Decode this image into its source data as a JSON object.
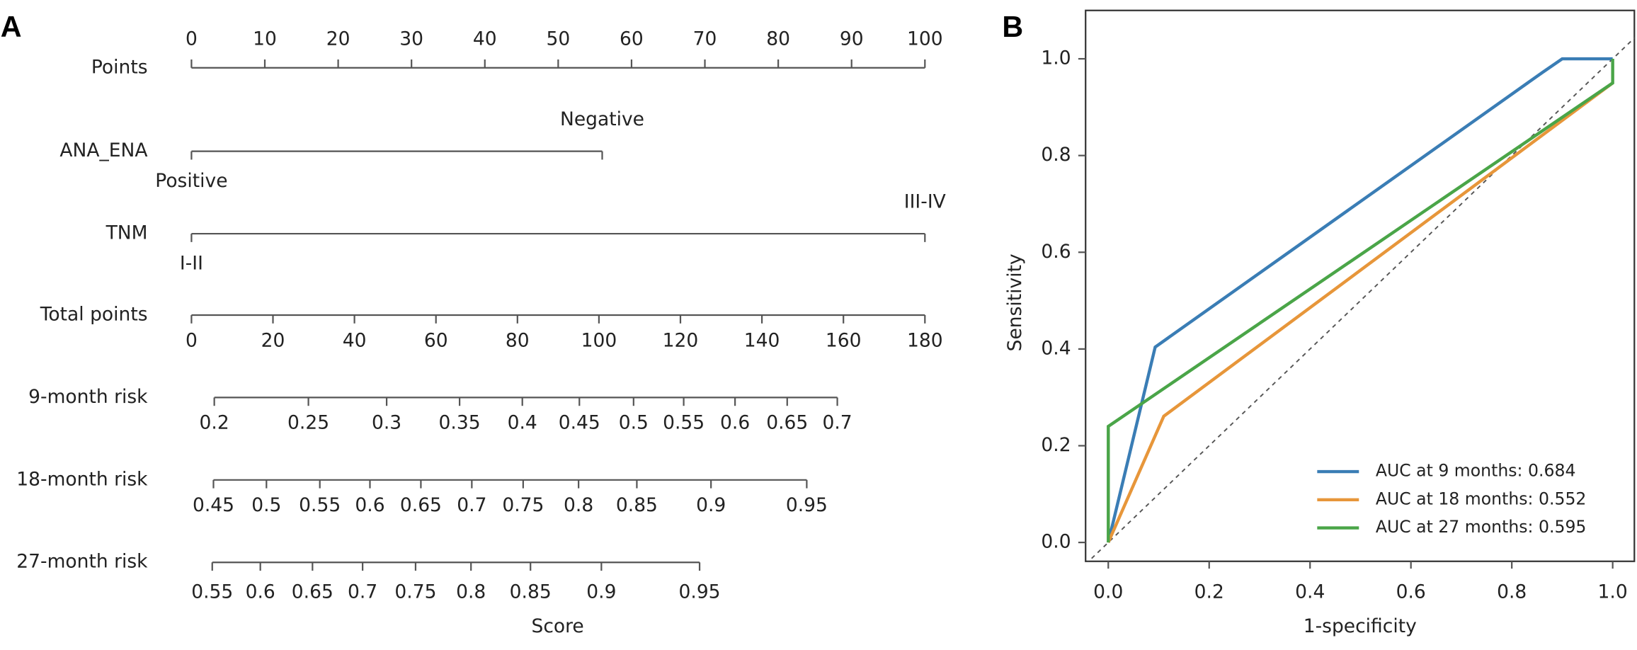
{
  "chart_data": [
    {
      "type": "nomogram",
      "panel": "A",
      "xlabel": "Score",
      "points_axis": {
        "label": "Points",
        "lim": [
          0,
          100
        ],
        "ticks": [
          0,
          10,
          20,
          30,
          40,
          50,
          60,
          70,
          80,
          90,
          100
        ]
      },
      "variables": [
        {
          "label": "ANA_ENA",
          "levels": [
            {
              "name": "Positive",
              "points": 0
            },
            {
              "name": "Negative",
              "points": 56
            }
          ]
        },
        {
          "label": "TNM",
          "levels": [
            {
              "name": "I-II",
              "points": 0
            },
            {
              "name": "III-IV",
              "points": 100
            }
          ]
        }
      ],
      "total_points_axis": {
        "label": "Total points",
        "lim": [
          0,
          180
        ],
        "ticks": [
          0,
          20,
          40,
          60,
          80,
          100,
          120,
          140,
          160,
          180
        ]
      },
      "risk_axes": [
        {
          "label": "9-month risk",
          "ticks": [
            0.2,
            0.25,
            0.3,
            0.35,
            0.4,
            0.45,
            0.5,
            0.55,
            0.6,
            0.65,
            0.7
          ],
          "positions": [
            5.6,
            28.7,
            47.9,
            65.8,
            81.2,
            95.2,
            108.5,
            120.8,
            133.4,
            146.2,
            158.5
          ]
        },
        {
          "label": "18-month risk",
          "ticks": [
            0.45,
            0.5,
            0.55,
            0.6,
            0.65,
            0.7,
            0.75,
            0.8,
            0.85,
            0.9,
            0.95
          ],
          "positions": [
            5.4,
            18.4,
            31.5,
            43.8,
            56.3,
            68.8,
            81.4,
            95.0,
            109.3,
            127.5,
            151.0
          ]
        },
        {
          "label": "27-month risk",
          "ticks": [
            0.55,
            0.6,
            0.65,
            0.7,
            0.75,
            0.8,
            0.85,
            0.9,
            0.95
          ],
          "positions": [
            5.1,
            16.9,
            29.7,
            42.0,
            55.0,
            68.6,
            83.2,
            100.6,
            124.7
          ]
        }
      ]
    },
    {
      "type": "line",
      "panel": "B",
      "xlabel": "1-specificity",
      "ylabel": "Sensitivity",
      "xlim": [
        -0.045,
        1.043
      ],
      "ylim": [
        -0.039,
        1.1
      ],
      "xticks": [
        {
          "value": 0,
          "label": "0.0"
        },
        {
          "value": 0.2,
          "label": "0.2"
        },
        {
          "value": 0.4,
          "label": "0.4"
        },
        {
          "value": 0.6,
          "label": "0.6"
        },
        {
          "value": 0.8,
          "label": "0.8"
        },
        {
          "value": 1,
          "label": "1.0"
        }
      ],
      "yticks": [
        {
          "value": 0,
          "label": "0.0"
        },
        {
          "value": 0.2,
          "label": "0.2"
        },
        {
          "value": 0.4,
          "label": "0.4"
        },
        {
          "value": 0.6,
          "label": "0.6"
        },
        {
          "value": 0.8,
          "label": "0.8"
        },
        {
          "value": 1,
          "label": "1.0"
        }
      ],
      "reference_line": true,
      "legend": "lower right",
      "series": [
        {
          "name": "AUC at 9 months: 0.684",
          "color": "#3a7db5",
          "x": [
            0,
            0.093,
            0.861,
            0.9,
            1
          ],
          "values": [
            0,
            0.404,
            0.972,
            1,
            1
          ]
        },
        {
          "name": "AUC at 18 months: 0.552",
          "color": "#e7963a",
          "x": [
            0,
            0.11,
            1
          ],
          "values": [
            0,
            0.261,
            0.95
          ]
        },
        {
          "name": "AUC at 27 months: 0.595",
          "color": "#4aa548",
          "x": [
            0,
            0,
            1,
            1
          ],
          "values": [
            0,
            0.24,
            0.95,
            1
          ]
        }
      ]
    }
  ]
}
